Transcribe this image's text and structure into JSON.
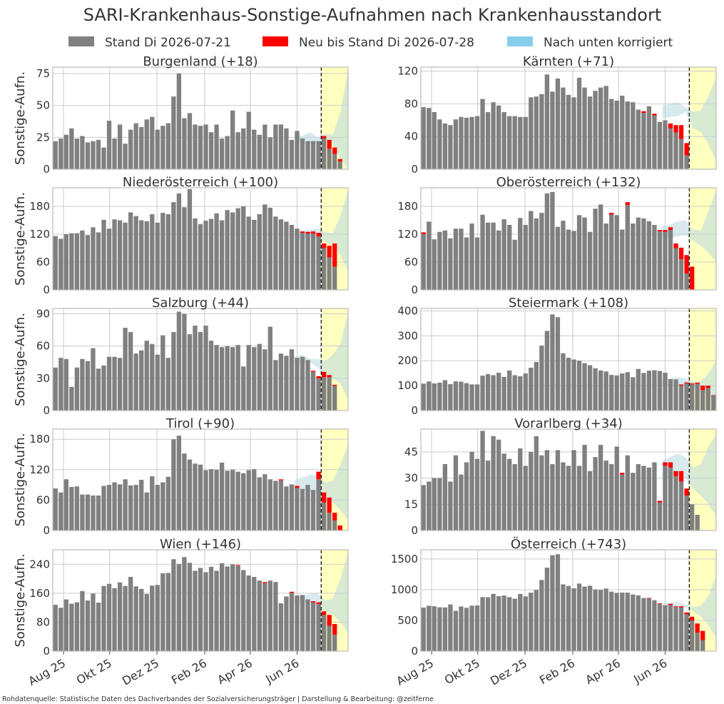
{
  "figure": {
    "title": "SARI-Krankenhaus-Sonstige-Aufnahmen nach Krankenhausstandort",
    "legend": [
      {
        "label": "Stand Di 2026-07-21",
        "color": "#808080"
      },
      {
        "label": "Neu bis Stand Di 2026-07-28",
        "color": "#ff0000"
      },
      {
        "label": "Nach unten korrigiert",
        "color": "#87ceeb"
      }
    ],
    "ylabel": "Sonstige-Aufn.",
    "x_ticks": [
      "Aug 25",
      "Okt 25",
      "Dez 25",
      "Feb 26",
      "Apr 26",
      "Jun 26"
    ],
    "footer": "Rohdatenquelle: Statistische Daten des Dachverbandes der Sozialversicherungsträger | Darstellung & Bearbeitung: @zeitferne",
    "colors": {
      "stand": "#808080",
      "neu": "#ff0000",
      "korrigiert": "#87ceeb",
      "forecast_band": "#c8dcc0",
      "forecast_bg": "#ffffc0",
      "grid": "#cccccc",
      "frame": "#bbbbbb"
    }
  },
  "chart_data": [
    {
      "type": "bar",
      "title": "Burgenland (+18)",
      "ylim": [
        0,
        80
      ],
      "yticks": [
        0,
        25,
        50,
        75
      ],
      "grey": [
        22,
        24,
        27,
        32,
        24,
        26,
        21,
        22,
        23,
        17,
        38,
        24,
        35,
        20,
        31,
        36,
        33,
        39,
        41,
        31,
        34,
        36,
        57,
        75,
        40,
        44,
        35,
        34,
        35,
        29,
        35,
        24,
        26,
        46,
        29,
        32,
        45,
        31,
        27,
        35,
        25,
        35,
        35,
        32,
        23,
        30,
        24,
        22,
        22,
        22,
        24,
        16,
        12,
        6,
        0
      ],
      "red": [
        0,
        0,
        0,
        0,
        0,
        0,
        0,
        0,
        0,
        0,
        0,
        0,
        0,
        0,
        0,
        0,
        0,
        0,
        0,
        0,
        0,
        0,
        0,
        0,
        0,
        0,
        0,
        0,
        0,
        0,
        0,
        0,
        0,
        0,
        0,
        0,
        0,
        0,
        0,
        0,
        0,
        0,
        0,
        0,
        0,
        0,
        0,
        0,
        0,
        0,
        2,
        7,
        5,
        2,
        0
      ],
      "band_lower": [
        25,
        19,
        20,
        20,
        24,
        20,
        8,
        0
      ],
      "band_upper": [
        27,
        26,
        29,
        25,
        28,
        27,
        45,
        78
      ]
    },
    {
      "type": "bar",
      "title": "Kärnten (+71)",
      "ylim": [
        0,
        125
      ],
      "yticks": [
        0,
        40,
        80,
        120
      ],
      "grey": [
        76,
        75,
        70,
        61,
        56,
        54,
        61,
        64,
        63,
        64,
        65,
        86,
        70,
        82,
        78,
        70,
        65,
        65,
        64,
        64,
        88,
        89,
        92,
        116,
        95,
        111,
        100,
        91,
        88,
        112,
        100,
        89,
        96,
        100,
        102,
        86,
        84,
        90,
        83,
        82,
        73,
        69,
        77,
        66,
        58,
        60,
        50,
        45,
        37,
        17,
        0,
        0,
        0,
        0,
        0
      ],
      "red": [
        0,
        0,
        0,
        0,
        0,
        0,
        0,
        0,
        0,
        0,
        0,
        0,
        0,
        0,
        0,
        0,
        0,
        0,
        0,
        0,
        0,
        0,
        0,
        0,
        0,
        0,
        0,
        0,
        0,
        0,
        0,
        0,
        0,
        0,
        0,
        0,
        0,
        0,
        0,
        0,
        0,
        0,
        0,
        0,
        0,
        0,
        0,
        0,
        0,
        0,
        0,
        0,
        0,
        0,
        0
      ],
      "red_override": {
        "41": 2,
        "43": 2,
        "46": 6,
        "47": 9,
        "48": 17,
        "49": 15,
        "50": 0
      },
      "band_lower": [
        62,
        64,
        65,
        70,
        50,
        46,
        30,
        10
      ],
      "band_upper": [
        78,
        80,
        82,
        76,
        70,
        72,
        90,
        112
      ]
    },
    {
      "type": "bar",
      "title": "Niederösterreich (+100)",
      "ylim": [
        0,
        220
      ],
      "yticks": [
        0,
        60,
        120,
        180
      ],
      "grey": [
        116,
        110,
        120,
        122,
        122,
        128,
        118,
        135,
        124,
        151,
        132,
        152,
        150,
        145,
        167,
        159,
        150,
        148,
        163,
        145,
        166,
        163,
        189,
        208,
        178,
        217,
        154,
        142,
        149,
        153,
        165,
        150,
        172,
        167,
        176,
        180,
        158,
        151,
        163,
        184,
        177,
        158,
        152,
        147,
        140,
        132,
        123,
        121,
        121,
        115,
        90,
        70,
        50,
        0,
        0
      ],
      "red": [
        0,
        0,
        0,
        0,
        0,
        0,
        0,
        0,
        0,
        0,
        0,
        0,
        0,
        0,
        0,
        0,
        0,
        0,
        0,
        0,
        0,
        0,
        0,
        0,
        0,
        0,
        0,
        0,
        0,
        0,
        0,
        0,
        0,
        0,
        0,
        0,
        0,
        0,
        0,
        0,
        0,
        0,
        0,
        0,
        0,
        0,
        3,
        4,
        5,
        8,
        10,
        25,
        50,
        0,
        0
      ],
      "band_lower": [
        110,
        108,
        112,
        110,
        105,
        95,
        75,
        40
      ],
      "band_upper": [
        128,
        126,
        130,
        132,
        125,
        122,
        160,
        215
      ]
    },
    {
      "type": "bar",
      "title": "Oberösterreich (+132)",
      "ylim": [
        0,
        220
      ],
      "yticks": [
        0,
        60,
        120,
        180
      ],
      "grey": [
        120,
        147,
        109,
        125,
        128,
        111,
        132,
        132,
        113,
        143,
        113,
        162,
        145,
        145,
        128,
        152,
        140,
        108,
        155,
        140,
        170,
        154,
        166,
        208,
        211,
        136,
        149,
        130,
        127,
        161,
        156,
        125,
        175,
        184,
        143,
        162,
        161,
        130,
        183,
        143,
        156,
        154,
        148,
        140,
        126,
        125,
        129,
        90,
        66,
        35,
        0,
        0,
        0,
        0,
        0
      ],
      "red": [
        4,
        0,
        0,
        0,
        0,
        0,
        0,
        0,
        0,
        0,
        0,
        0,
        0,
        0,
        0,
        0,
        0,
        0,
        0,
        0,
        0,
        0,
        0,
        0,
        0,
        0,
        0,
        0,
        0,
        0,
        0,
        0,
        0,
        0,
        0,
        4,
        0,
        0,
        6,
        0,
        0,
        0,
        0,
        0,
        3,
        4,
        6,
        10,
        25,
        40,
        50,
        0,
        0,
        0,
        0
      ],
      "band_lower": [
        110,
        112,
        115,
        118,
        105,
        95,
        80,
        60
      ],
      "band_upper": [
        138,
        140,
        148,
        150,
        130,
        128,
        170,
        215
      ]
    },
    {
      "type": "bar",
      "title": "Salzburg (+44)",
      "ylim": [
        0,
        95
      ],
      "yticks": [
        0,
        30,
        60,
        90
      ],
      "grey": [
        40,
        49,
        48,
        22,
        40,
        48,
        46,
        58,
        39,
        42,
        50,
        50,
        49,
        77,
        73,
        53,
        56,
        65,
        62,
        52,
        70,
        49,
        73,
        92,
        90,
        71,
        79,
        73,
        79,
        65,
        61,
        59,
        60,
        59,
        61,
        41,
        61,
        59,
        62,
        57,
        78,
        47,
        53,
        51,
        57,
        49,
        50,
        47,
        36,
        30,
        31,
        31,
        23,
        0,
        0
      ],
      "red": [
        0,
        0,
        0,
        0,
        0,
        0,
        0,
        0,
        0,
        0,
        0,
        0,
        0,
        0,
        0,
        0,
        0,
        0,
        0,
        0,
        0,
        0,
        0,
        0,
        0,
        0,
        0,
        0,
        0,
        0,
        0,
        0,
        0,
        0,
        0,
        0,
        0,
        0,
        0,
        0,
        0,
        0,
        0,
        0,
        0,
        0,
        0,
        0,
        1,
        2,
        5,
        2,
        1,
        0,
        0
      ],
      "band_lower": [
        42,
        44,
        45,
        40,
        32,
        30,
        25,
        10
      ],
      "band_upper": [
        50,
        52,
        48,
        48,
        46,
        52,
        62,
        92
      ]
    },
    {
      "type": "bar",
      "title": "Steiermark (+108)",
      "ylim": [
        0,
        410
      ],
      "yticks": [
        0,
        100,
        200,
        300,
        400
      ],
      "grey": [
        108,
        117,
        109,
        112,
        122,
        106,
        117,
        116,
        110,
        105,
        105,
        140,
        146,
        142,
        152,
        135,
        161,
        142,
        138,
        149,
        172,
        195,
        261,
        320,
        386,
        375,
        230,
        212,
        205,
        200,
        190,
        182,
        170,
        161,
        157,
        143,
        141,
        149,
        154,
        134,
        167,
        151,
        160,
        162,
        159,
        152,
        126,
        125,
        101,
        109,
        105,
        107,
        82,
        90,
        60
      ],
      "red": [
        0,
        0,
        0,
        0,
        0,
        0,
        0,
        0,
        0,
        0,
        0,
        0,
        0,
        0,
        0,
        0,
        0,
        0,
        0,
        0,
        0,
        0,
        0,
        0,
        0,
        0,
        0,
        0,
        0,
        0,
        0,
        0,
        0,
        0,
        0,
        0,
        0,
        0,
        0,
        0,
        0,
        0,
        0,
        0,
        0,
        0,
        0,
        0,
        4,
        4,
        4,
        5,
        18,
        10,
        2
      ],
      "band_lower": [
        100,
        102,
        100,
        95,
        85,
        80,
        60,
        30
      ],
      "band_upper": [
        120,
        130,
        135,
        128,
        115,
        118,
        150,
        200
      ]
    },
    {
      "type": "bar",
      "title": "Tirol (+90)",
      "ylim": [
        0,
        200
      ],
      "yticks": [
        0,
        60,
        120,
        180
      ],
      "grey": [
        83,
        75,
        101,
        86,
        87,
        71,
        71,
        69,
        69,
        88,
        90,
        95,
        91,
        101,
        89,
        90,
        100,
        75,
        107,
        90,
        95,
        106,
        180,
        187,
        152,
        140,
        132,
        130,
        119,
        121,
        120,
        134,
        118,
        120,
        116,
        113,
        119,
        121,
        105,
        111,
        101,
        98,
        99,
        87,
        91,
        84,
        82,
        90,
        80,
        101,
        55,
        35,
        20,
        0,
        0
      ],
      "red": [
        0,
        0,
        0,
        0,
        0,
        0,
        0,
        0,
        0,
        0,
        0,
        0,
        0,
        0,
        0,
        0,
        0,
        0,
        0,
        0,
        0,
        0,
        0,
        0,
        0,
        0,
        0,
        0,
        0,
        0,
        0,
        0,
        0,
        0,
        0,
        0,
        0,
        0,
        0,
        0,
        0,
        0,
        2,
        0,
        0,
        4,
        0,
        0,
        0,
        15,
        20,
        30,
        15,
        10,
        0
      ],
      "band_lower": [
        80,
        82,
        75,
        70,
        60,
        55,
        40,
        20
      ],
      "band_upper": [
        100,
        104,
        110,
        108,
        95,
        98,
        130,
        170
      ]
    },
    {
      "type": "bar",
      "title": "Vorarlberg (+34)",
      "ylim": [
        0,
        58
      ],
      "yticks": [
        0,
        15,
        30,
        45
      ],
      "grey": [
        26,
        28,
        30,
        30,
        38,
        28,
        43,
        32,
        39,
        45,
        41,
        57,
        40,
        54,
        52,
        44,
        41,
        38,
        47,
        37,
        45,
        54,
        43,
        46,
        38,
        46,
        39,
        37,
        46,
        37,
        49,
        34,
        42,
        49,
        40,
        38,
        48,
        32,
        43,
        33,
        38,
        37,
        36,
        39,
        16,
        37,
        36,
        31,
        28,
        20,
        15,
        9,
        0,
        0,
        0
      ],
      "red": [
        0,
        0,
        0,
        0,
        0,
        0,
        0,
        0,
        0,
        0,
        0,
        0,
        0,
        0,
        0,
        0,
        0,
        0,
        0,
        0,
        0,
        0,
        0,
        0,
        0,
        0,
        0,
        0,
        0,
        0,
        0,
        0,
        0,
        0,
        0,
        0,
        0,
        1,
        0,
        0,
        0,
        0,
        0,
        0,
        1,
        2,
        3,
        3,
        6,
        4,
        0,
        0,
        0,
        0,
        0
      ],
      "band_lower": [
        28,
        30,
        32,
        30,
        24,
        20,
        15,
        8
      ],
      "band_upper": [
        40,
        42,
        44,
        42,
        36,
        38,
        48,
        55
      ]
    },
    {
      "type": "bar",
      "title": "Wien (+146)",
      "ylim": [
        0,
        280
      ],
      "yticks": [
        0,
        80,
        160,
        240
      ],
      "grey": [
        128,
        120,
        143,
        131,
        135,
        166,
        140,
        159,
        134,
        180,
        186,
        174,
        190,
        180,
        205,
        179,
        172,
        158,
        181,
        183,
        215,
        216,
        254,
        241,
        260,
        244,
        222,
        230,
        218,
        233,
        222,
        243,
        234,
        240,
        236,
        224,
        209,
        205,
        195,
        188,
        195,
        191,
        132,
        151,
        161,
        154,
        155,
        143,
        135,
        130,
        100,
        70,
        45,
        0,
        0
      ],
      "red": [
        0,
        0,
        0,
        0,
        0,
        0,
        0,
        0,
        0,
        0,
        0,
        0,
        0,
        0,
        0,
        0,
        0,
        0,
        0,
        0,
        0,
        0,
        0,
        0,
        0,
        0,
        0,
        0,
        0,
        0,
        0,
        0,
        0,
        0,
        2,
        0,
        0,
        0,
        0,
        3,
        0,
        0,
        0,
        0,
        3,
        0,
        0,
        0,
        3,
        5,
        10,
        30,
        30,
        0,
        0
      ],
      "band_lower": [
        130,
        132,
        135,
        130,
        110,
        100,
        80,
        50
      ],
      "band_upper": [
        150,
        152,
        158,
        160,
        140,
        145,
        200,
        275
      ]
    },
    {
      "type": "bar",
      "title": "Österreich (+743)",
      "ylim": [
        0,
        1650
      ],
      "yticks": [
        0,
        500,
        1000,
        1500
      ],
      "grey": [
        710,
        739,
        731,
        714,
        712,
        760,
        657,
        727,
        706,
        741,
        744,
        880,
        878,
        932,
        896,
        905,
        879,
        854,
        932,
        891,
        952,
        996,
        1158,
        1359,
        1561,
        1578,
        1087,
        1062,
        1023,
        1100,
        1050,
        1065,
        1006,
        998,
        1020,
        969,
        949,
        953,
        953,
        922,
        908,
        866,
        855,
        830,
        770,
        740,
        750,
        722,
        710,
        600,
        500,
        300,
        180,
        0,
        0
      ],
      "red": [
        0,
        0,
        0,
        0,
        0,
        0,
        0,
        0,
        0,
        0,
        0,
        0,
        0,
        0,
        0,
        0,
        0,
        0,
        0,
        0,
        0,
        0,
        0,
        0,
        0,
        0,
        0,
        0,
        0,
        0,
        0,
        0,
        0,
        0,
        0,
        0,
        0,
        0,
        0,
        0,
        0,
        0,
        10,
        0,
        10,
        5,
        20,
        10,
        20,
        30,
        60,
        150,
        150,
        0,
        0
      ],
      "band_lower": [
        700,
        720,
        730,
        720,
        650,
        560,
        420,
        200
      ],
      "band_upper": [
        780,
        790,
        800,
        760,
        720,
        740,
        900,
        1230
      ]
    }
  ]
}
